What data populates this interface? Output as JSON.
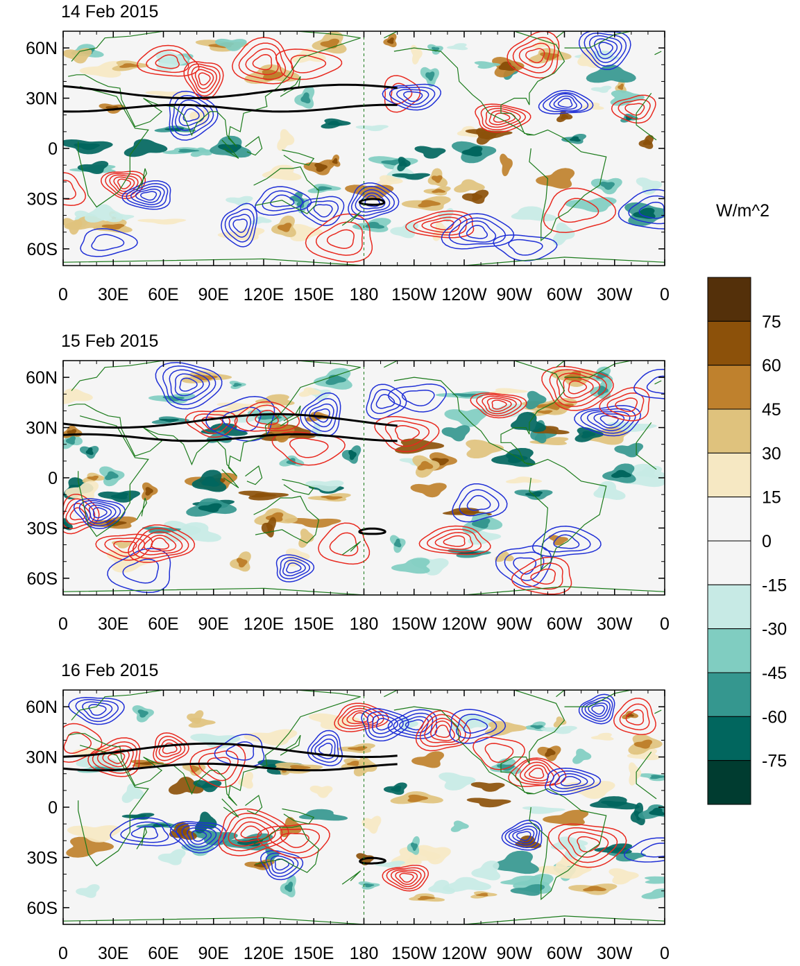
{
  "panels": [
    {
      "date": "14 Feb 2015"
    },
    {
      "date": "15 Feb 2015"
    },
    {
      "date": "16 Feb 2015"
    }
  ],
  "axes": {
    "lat_labels": [
      "60N",
      "30N",
      "0",
      "30S",
      "60S"
    ],
    "lon_labels": [
      "0",
      "30E",
      "60E",
      "90E",
      "120E",
      "150E",
      "180",
      "150W",
      "120W",
      "90W",
      "60W",
      "30W",
      "0"
    ]
  },
  "colorbar": {
    "units": "W/m^2",
    "labels": [
      "75",
      "60",
      "45",
      "30",
      "15",
      "0",
      "-15",
      "-30",
      "-45",
      "-60",
      "-75"
    ],
    "colors": [
      "#54300a",
      "#8c510a",
      "#bf812d",
      "#dfc27d",
      "#f6e8c3",
      "#f5f5f5",
      "#f5f5f5",
      "#c7eae5",
      "#80cdc1",
      "#35978f",
      "#01665e",
      "#003c30"
    ]
  },
  "style": {
    "contour_positive": "#e8281e",
    "contour_negative": "#1f2fd6",
    "coastline": "#1a7a1a",
    "jet_contour": "#000000"
  }
}
